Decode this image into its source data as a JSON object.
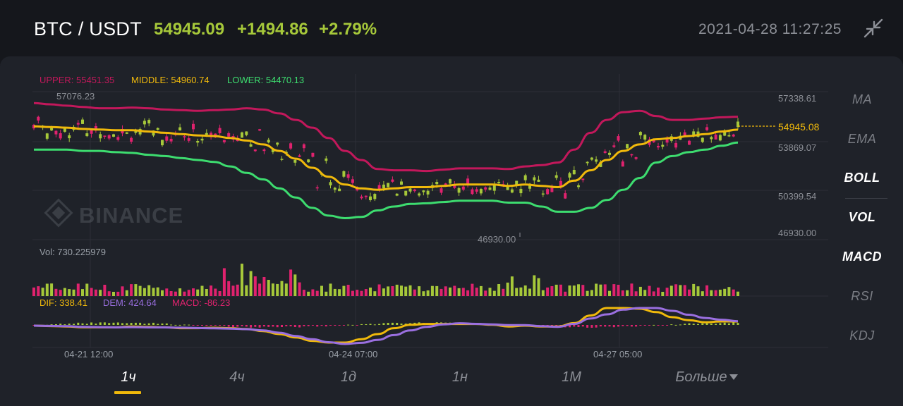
{
  "header": {
    "pair": "BTC / USDT",
    "last_price": "54945.09",
    "change_abs": "+1494.86",
    "change_pct": "+2.79%",
    "datetime": "2021-04-28 11:27:25",
    "collapse_icon": "shrink-arrows-icon"
  },
  "colors": {
    "up": "#a6c83a",
    "down": "#e0226e",
    "upper_band": "#c2185b",
    "middle_band": "#f0b90b",
    "lower_band": "#3ddc6f",
    "dem": "#9a6fe0",
    "grid": "#2c2f37"
  },
  "boll_legend": {
    "upper": "UPPER: 55451.35",
    "middle": "MIDDLE: 54960.74",
    "lower": "LOWER: 54470.13"
  },
  "price_axis": {
    "ticks": [
      "57338.61",
      "53869.07",
      "50399.54",
      "46930.00"
    ],
    "current_price_tag": "54945.08",
    "high_marker": "57076.23",
    "low_marker": "46930.00"
  },
  "watermark": "BINANCE",
  "volume": {
    "label": "Vol: 730.225979"
  },
  "macd": {
    "dif": "DIF: 338.41",
    "dem": "DEM: 424.64",
    "macd": "MACD: -86.23"
  },
  "time_axis": [
    "04-21 12:00",
    "04-24 07:00",
    "04-27 05:00"
  ],
  "indicators": [
    {
      "label": "MA",
      "active": false
    },
    {
      "label": "EMA",
      "active": false
    },
    {
      "label": "BOLL",
      "active": true
    },
    {
      "label": "VOL",
      "active": true
    },
    {
      "label": "MACD",
      "active": true
    },
    {
      "label": "RSI",
      "active": false
    },
    {
      "label": "KDJ",
      "active": false
    }
  ],
  "timeframes": [
    {
      "label": "1ч",
      "active": true
    },
    {
      "label": "4ч",
      "active": false
    },
    {
      "label": "1д",
      "active": false
    },
    {
      "label": "1н",
      "active": false
    },
    {
      "label": "1М",
      "active": false
    },
    {
      "label": "Больше",
      "active": false
    }
  ],
  "chart_data": {
    "type": "candlestick",
    "price_range": [
      46930.0,
      57338.61
    ],
    "middle_band": [
      55200,
      55150,
      55100,
      55000,
      54950,
      54900,
      54900,
      54800,
      54700,
      54600,
      54500,
      54450,
      54300,
      54100,
      53800,
      53300,
      52700,
      52000,
      51300,
      50700,
      50400,
      50300,
      50400,
      50500,
      50500,
      50600,
      50700,
      50700,
      50700,
      50600,
      50700,
      50600,
      50500,
      51000,
      51800,
      52600,
      53300,
      53800,
      54200,
      54300,
      54450,
      54600,
      54800,
      54945
    ]
  }
}
